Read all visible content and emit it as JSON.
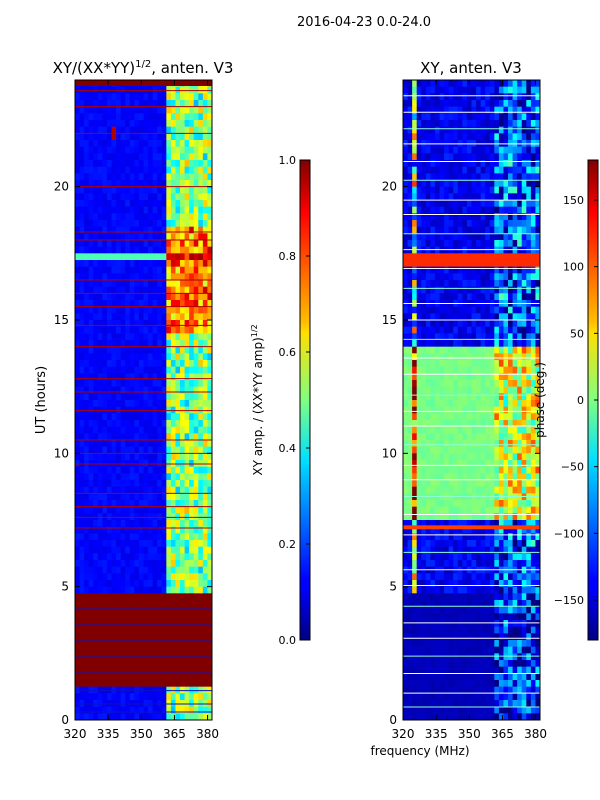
{
  "figure": {
    "suptitle": "2016-04-23 0.0-24.0",
    "shared_xlabel": "frequency (MHz)"
  },
  "chart_data": [
    {
      "type": "heatmap",
      "title": "XY/(XX*YY)",
      "title_sup": "1/2",
      "title_suffix": ", anten. V3",
      "xlabel": "",
      "ylabel": "UT (hours)",
      "xlim": [
        320,
        382
      ],
      "ylim": [
        0,
        24
      ],
      "xticks": [
        320,
        335,
        350,
        365,
        380
      ],
      "yticks": [
        0,
        5,
        10,
        15,
        20
      ],
      "colormap": "jet",
      "colorbar": {
        "label": "XY amp. / (XX*YY amp)",
        "label_sup": "1/2",
        "range": [
          0.0,
          1.0
        ],
        "ticks": [
          "0.0",
          "0.2",
          "0.4",
          "0.6",
          "0.8",
          "1.0"
        ]
      },
      "features": {
        "saturated_band_hours": [
          1.2,
          4.8
        ],
        "bright_channels_mhz": [
          362,
          382
        ],
        "hot_spot": {
          "freq_mhz": 338,
          "hour": 22
        }
      }
    },
    {
      "type": "heatmap",
      "title": "XY, anten. V3",
      "xlabel": "frequency (MHz)",
      "ylabel": "",
      "xlim": [
        320,
        382
      ],
      "ylim": [
        0,
        24
      ],
      "xticks": [
        320,
        335,
        350,
        365,
        380
      ],
      "yticks": [
        0,
        5,
        10,
        15,
        20
      ],
      "colormap": "jet",
      "colorbar": {
        "label": "phase (deg.)",
        "range": [
          -180,
          180
        ],
        "ticks": [
          "150",
          "100",
          "50",
          "0",
          "−50",
          "−100",
          "−150"
        ]
      },
      "features": {
        "near_zero_phase_band_hours": [
          7.5,
          14.0
        ],
        "low_phase_band_hours": [
          0,
          4.8
        ]
      }
    }
  ]
}
